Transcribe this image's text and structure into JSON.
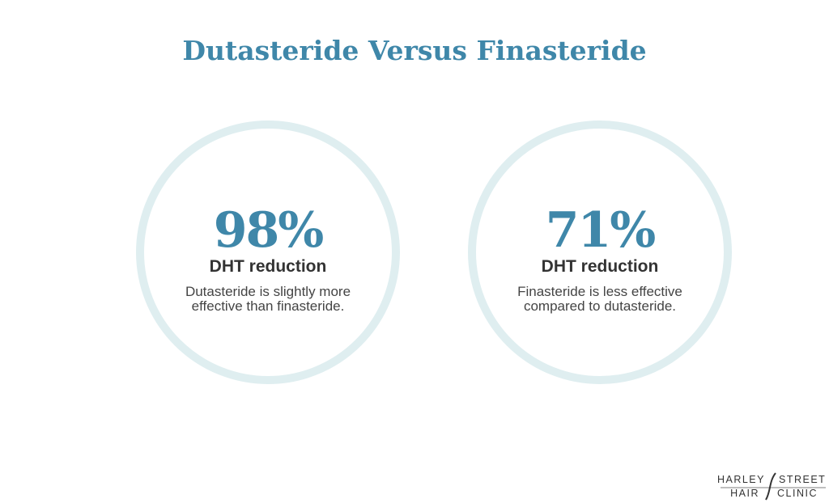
{
  "header": {
    "title": "Dutasteride Versus Finasteride"
  },
  "cards": [
    {
      "stat": "98%",
      "label": "DHT reduction",
      "description": [
        "Dutasteride is slightly more",
        "effective than finasteride."
      ]
    },
    {
      "stat": "71%",
      "label": "DHT reduction",
      "description": [
        "Finasteride is less effective",
        "compared to dutasteride."
      ]
    }
  ],
  "logo": {
    "words": [
      "HARLEY",
      "STREET",
      "HAIR",
      "CLINIC"
    ]
  }
}
